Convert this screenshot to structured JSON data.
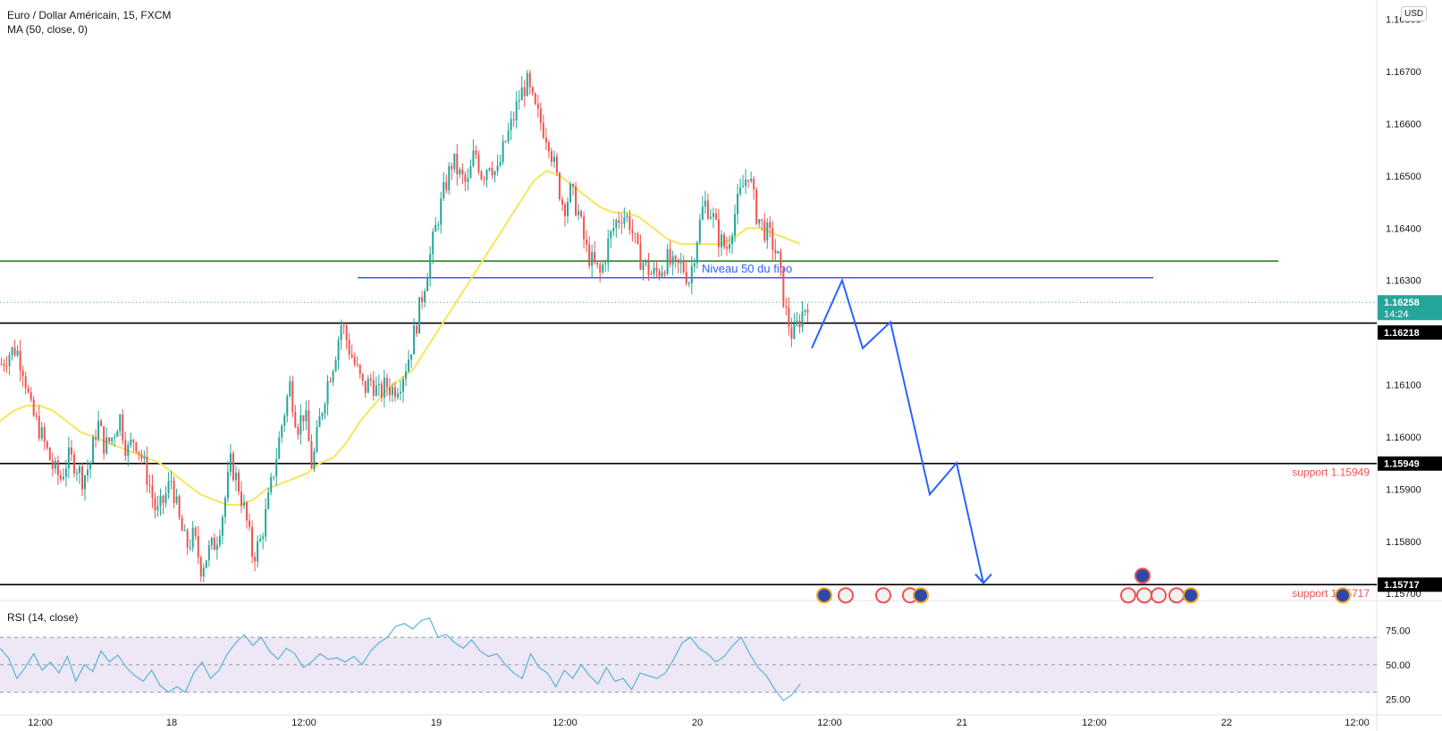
{
  "header": {
    "title": "Euro / Dollar Américain, 15, FXCM",
    "indicator": "MA (50, close, 0)",
    "rsi_label": "RSI (14, close)",
    "currency_badge": "USD"
  },
  "colors": {
    "up": "#26a69a",
    "down": "#ef5350",
    "ma": "#f7e55c",
    "rsi": "#58b4d6",
    "rsi_band": "#ede7f6",
    "fib_line": "#2962ff",
    "green_line": "#1b7a1b",
    "support_text": "#ef5350",
    "last_price_bg": "#26a69a"
  },
  "chart_data": [
    {
      "type": "candlestick",
      "title": "Euro / Dollar Américain, 15, FXCM",
      "ylim": [
        1.1569,
        1.1682
      ],
      "y_ticks": [
        "1.16800",
        "1.16700",
        "1.16600",
        "1.16500",
        "1.16400",
        "1.16300",
        "1.16200",
        "1.16100",
        "1.16000",
        "1.15900",
        "1.15800",
        "1.15700"
      ],
      "x_ticks": [
        "12:00",
        "18",
        "12:00",
        "19",
        "12:00",
        "20",
        "12:00",
        "21",
        "12:00",
        "22",
        "12:00"
      ],
      "price_labels": {
        "last": "1.16258",
        "countdown": "14:24",
        "l1": "1.16218",
        "l2": "1.15949",
        "l3": "1.15717"
      },
      "levels": [
        {
          "name": "green",
          "price": 1.16337
        },
        {
          "name": "fibo",
          "price": 1.16305,
          "label": "Niveau 50 du fibo"
        },
        {
          "name": "resistance",
          "price": 1.16218
        },
        {
          "name": "support1",
          "price": 1.15949,
          "label": "support 1.15949"
        },
        {
          "name": "support2",
          "price": 1.15717,
          "label": "support 1.15717"
        },
        {
          "name": "last",
          "price": 1.16258
        }
      ],
      "close_path": [
        1.1614,
        1.1616,
        1.1617,
        1.1613,
        1.1605,
        1.1602,
        1.1598,
        1.1594,
        1.1592,
        1.1596,
        1.1595,
        1.1592,
        1.1595,
        1.1603,
        1.1598,
        1.16,
        1.1604,
        1.1597,
        1.16,
        1.1596,
        1.1591,
        1.1585,
        1.1588,
        1.1592,
        1.1584,
        1.1579,
        1.1581,
        1.1575,
        1.1578,
        1.158,
        1.1586,
        1.1595,
        1.1591,
        1.1585,
        1.1577,
        1.158,
        1.1587,
        1.1595,
        1.1603,
        1.161,
        1.1602,
        1.1605,
        1.1594,
        1.1603,
        1.161,
        1.1615,
        1.1622,
        1.1617,
        1.1613,
        1.1609,
        1.1611,
        1.1608,
        1.161,
        1.1609,
        1.1611,
        1.1615,
        1.1621,
        1.1628,
        1.1635,
        1.1642,
        1.1648,
        1.1653,
        1.165,
        1.1648,
        1.1655,
        1.165,
        1.1653,
        1.165,
        1.1656,
        1.166,
        1.1665,
        1.1668,
        1.1663,
        1.166,
        1.1657,
        1.165,
        1.1644,
        1.1647,
        1.1643,
        1.1636,
        1.1633,
        1.1631,
        1.1637,
        1.1641,
        1.1643,
        1.1641,
        1.1635,
        1.1633,
        1.1631,
        1.1632,
        1.1634,
        1.1632,
        1.1633,
        1.163,
        1.1638,
        1.1645,
        1.1643,
        1.1638,
        1.1636,
        1.1642,
        1.1647,
        1.1651,
        1.1643,
        1.164,
        1.1638,
        1.1634,
        1.1624,
        1.1619,
        1.1623,
        1.1626
      ],
      "ma_path": [
        1.1603,
        1.1605,
        1.1606,
        1.1606,
        1.1605,
        1.1603,
        1.1601,
        1.16,
        1.1599,
        1.1598,
        1.1597,
        1.1596,
        1.1595,
        1.1593,
        1.1591,
        1.1589,
        1.1588,
        1.1587,
        1.1587,
        1.1588,
        1.159,
        1.1591,
        1.1592,
        1.1593,
        1.1595,
        1.1596,
        1.1599,
        1.1603,
        1.1606,
        1.1609,
        1.1611,
        1.1613,
        1.1617,
        1.1621,
        1.1625,
        1.1629,
        1.1633,
        1.1637,
        1.1641,
        1.1645,
        1.1649,
        1.1651,
        1.165,
        1.1648,
        1.1646,
        1.1644,
        1.1643,
        1.1643,
        1.1642,
        1.164,
        1.1638,
        1.1637,
        1.1637,
        1.1637,
        1.1637,
        1.1638,
        1.164,
        1.164,
        1.1639,
        1.1638,
        1.1637
      ],
      "projection": [
        [
          1.1617
        ],
        [
          1.163
        ],
        [
          1.1617
        ],
        [
          1.1622
        ],
        [
          1.1589
        ],
        [
          1.1595
        ],
        [
          1.1572
        ]
      ]
    },
    {
      "type": "line",
      "title": "RSI (14, close)",
      "ylim": [
        20,
        85
      ],
      "y_ticks": [
        "75.00",
        "50.00",
        "25.00"
      ],
      "band": [
        30,
        70
      ],
      "values": [
        62,
        55,
        40,
        48,
        58,
        46,
        52,
        44,
        56,
        38,
        50,
        45,
        60,
        52,
        57,
        48,
        42,
        38,
        46,
        35,
        30,
        34,
        30,
        44,
        52,
        40,
        46,
        58,
        66,
        72,
        64,
        70,
        60,
        54,
        62,
        58,
        48,
        52,
        58,
        54,
        55,
        52,
        56,
        50,
        60,
        66,
        70,
        78,
        80,
        76,
        82,
        84,
        70,
        72,
        66,
        62,
        68,
        60,
        56,
        58,
        50,
        44,
        40,
        58,
        48,
        44,
        34,
        46,
        40,
        50,
        42,
        36,
        48,
        38,
        40,
        32,
        44,
        42,
        40,
        44,
        54,
        66,
        70,
        62,
        58,
        52,
        56,
        64,
        70,
        58,
        48,
        42,
        32,
        24,
        28,
        36
      ]
    }
  ]
}
